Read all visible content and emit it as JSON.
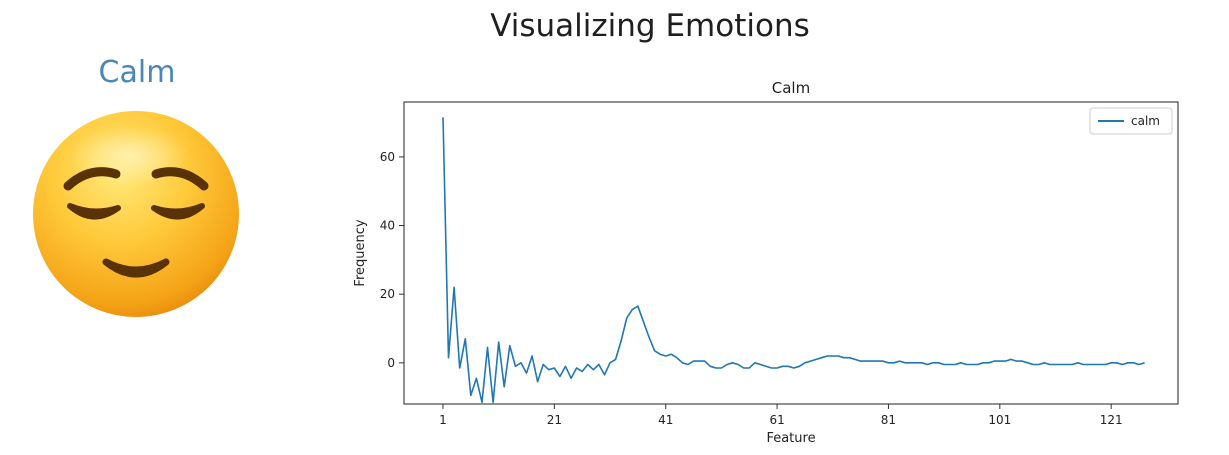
{
  "page": {
    "title": "Visualizing Emotions",
    "emotion_label": "Calm"
  },
  "emoji": {
    "icon": "relieved-face-icon"
  },
  "chart_data": {
    "type": "line",
    "title": "Calm",
    "xlabel": "Feature",
    "ylabel": "Frequency",
    "xlim": [
      -6,
      133
    ],
    "ylim": [
      -12,
      76
    ],
    "xticks": [
      1,
      21,
      41,
      61,
      81,
      101,
      121
    ],
    "yticks": [
      0,
      20,
      40,
      60
    ],
    "legend": "top-right",
    "grid": false,
    "series": [
      {
        "name": "calm",
        "color": "#1f77b4",
        "x": [
          1,
          2,
          3,
          4,
          5,
          6,
          7,
          8,
          9,
          10,
          11,
          12,
          13,
          14,
          15,
          16,
          17,
          18,
          19,
          20,
          21,
          22,
          23,
          24,
          25,
          26,
          27,
          28,
          29,
          30,
          31,
          32,
          33,
          34,
          35,
          36,
          37,
          38,
          39,
          40,
          41,
          42,
          43,
          44,
          45,
          46,
          47,
          48,
          49,
          50,
          51,
          52,
          53,
          54,
          55,
          56,
          57,
          58,
          59,
          60,
          61,
          62,
          63,
          64,
          65,
          66,
          67,
          68,
          69,
          70,
          71,
          72,
          73,
          74,
          75,
          76,
          77,
          78,
          79,
          80,
          81,
          82,
          83,
          84,
          85,
          86,
          87,
          88,
          89,
          90,
          91,
          92,
          93,
          94,
          95,
          96,
          97,
          98,
          99,
          100,
          101,
          102,
          103,
          104,
          105,
          106,
          107,
          108,
          109,
          110,
          111,
          112,
          113,
          114,
          115,
          116,
          117,
          118,
          119,
          120,
          121,
          122,
          123,
          124,
          125,
          126,
          127
        ],
        "values": [
          71.5,
          1.5,
          22,
          -1.5,
          7,
          -9.5,
          -4.5,
          -11.5,
          4.5,
          -11.5,
          6,
          -7,
          5,
          -1,
          0,
          -3,
          2,
          -5.5,
          -0.5,
          -2,
          -1.5,
          -4,
          -1,
          -4.5,
          -1.5,
          -2.5,
          -0.5,
          -2,
          -0.5,
          -3.5,
          0,
          1,
          6.5,
          13,
          15.5,
          16.5,
          12,
          7.5,
          3.5,
          2.5,
          2,
          2.5,
          1.5,
          0,
          -0.5,
          0.5,
          0.5,
          0.5,
          -1,
          -1.5,
          -1.5,
          -0.5,
          0,
          -0.5,
          -1.5,
          -1.5,
          0,
          -0.5,
          -1,
          -1.5,
          -1.5,
          -1,
          -1,
          -1.5,
          -1,
          0,
          0.5,
          1,
          1.5,
          2,
          2,
          2,
          1.5,
          1.5,
          1,
          0.5,
          0.5,
          0.5,
          0.5,
          0.5,
          0,
          0,
          0.5,
          0,
          0,
          0,
          0,
          -0.5,
          0,
          0,
          -0.5,
          -0.5,
          -0.5,
          0,
          -0.5,
          -0.5,
          -0.5,
          0,
          0,
          0.5,
          0.5,
          0.5,
          1,
          0.5,
          0.5,
          0,
          -0.5,
          -0.5,
          0,
          -0.5,
          -0.5,
          -0.5,
          -0.5,
          -0.5,
          0,
          -0.5,
          -0.5,
          -0.5,
          -0.5,
          -0.5,
          0,
          0,
          -0.5,
          0,
          0,
          -0.5,
          0
        ]
      }
    ]
  }
}
